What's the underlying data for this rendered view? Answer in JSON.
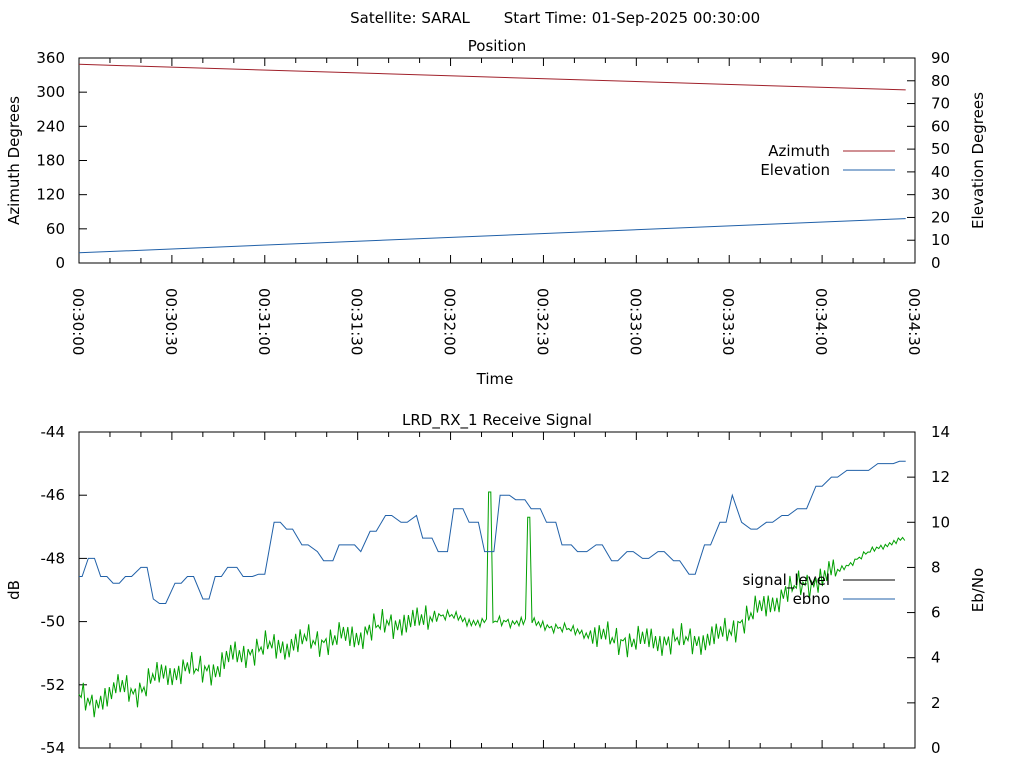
{
  "header": {
    "satellite": "Satellite: SARAL",
    "start_time": "Start Time: 01-Sep-2025 00:30:00"
  },
  "chart_data": [
    {
      "type": "line",
      "title": "Position",
      "xlabel": "Time",
      "ylabel": "Azimuth Degrees",
      "y2label": "Elevation Degrees",
      "ylim": [
        0,
        360
      ],
      "y2lim": [
        0,
        90
      ],
      "yticks": [
        "0",
        "60",
        "120",
        "180",
        "240",
        "300",
        "360"
      ],
      "y2ticks": [
        "0",
        "10",
        "20",
        "30",
        "40",
        "50",
        "60",
        "70",
        "80",
        "90"
      ],
      "xticks": [
        "00:30:00",
        "00:30:30",
        "00:31:00",
        "00:31:30",
        "00:32:00",
        "00:32:30",
        "00:33:00",
        "00:33:30",
        "00:34:00",
        "00:34:30"
      ],
      "grid": false,
      "legend": "right",
      "colors": {
        "azimuth": "#a0202a",
        "elevation": "#2060a8"
      },
      "series": [
        {
          "name": "Azimuth",
          "axis": "left",
          "x": [
            "00:30:00",
            "00:34:27"
          ],
          "values": [
            349,
            304
          ]
        },
        {
          "name": "Elevation",
          "axis": "right",
          "x": [
            "00:30:00",
            "00:34:27"
          ],
          "values": [
            4.5,
            19.5
          ]
        }
      ]
    },
    {
      "type": "line",
      "title": "LRD_RX_1 Receive Signal",
      "ylabel": "dB",
      "y2label": "Eb/No",
      "ylim": [
        -54,
        -44
      ],
      "y2lim": [
        0,
        14
      ],
      "yticks": [
        "-54",
        "-52",
        "-50",
        "-48",
        "-46",
        "-44"
      ],
      "y2ticks": [
        "0",
        "2",
        "4",
        "6",
        "8",
        "10",
        "12",
        "14"
      ],
      "grid": false,
      "legend": "right",
      "colors": {
        "signal_level": "#000000",
        "ebno": "#2060a8",
        "green_trace": "#00a000"
      },
      "series": [
        {
          "name": "signal_level",
          "axis": "left",
          "values": []
        },
        {
          "name": "ebno",
          "axis": "right",
          "x": [
            "00:30:00",
            "00:30:01",
            "00:30:03",
            "00:30:05",
            "00:30:07",
            "00:30:09",
            "00:30:11",
            "00:30:13",
            "00:30:15",
            "00:30:17",
            "00:30:20",
            "00:30:22",
            "00:30:24",
            "00:30:26",
            "00:30:28",
            "00:30:31",
            "00:30:33",
            "00:30:35",
            "00:30:37",
            "00:30:40",
            "00:30:42",
            "00:30:44",
            "00:30:46",
            "00:30:48",
            "00:30:51",
            "00:30:53",
            "00:30:56",
            "00:30:58",
            "00:31:00",
            "00:31:03",
            "00:31:05",
            "00:31:07",
            "00:31:09",
            "00:31:12",
            "00:31:14",
            "00:31:17",
            "00:31:19",
            "00:31:22",
            "00:31:24",
            "00:31:27",
            "00:31:29",
            "00:31:31",
            "00:31:34",
            "00:31:36",
            "00:31:39",
            "00:31:41",
            "00:31:44",
            "00:31:46",
            "00:31:49",
            "00:31:51",
            "00:31:54",
            "00:31:56",
            "00:31:59",
            "00:32:01",
            "00:32:04",
            "00:32:06",
            "00:32:09",
            "00:32:11",
            "00:32:14",
            "00:32:16",
            "00:32:19",
            "00:32:21",
            "00:32:24",
            "00:32:26",
            "00:32:29",
            "00:32:31",
            "00:32:34",
            "00:32:36",
            "00:32:39",
            "00:32:41",
            "00:32:44",
            "00:32:47",
            "00:32:49",
            "00:32:52",
            "00:32:54",
            "00:32:57",
            "00:32:59",
            "00:33:02",
            "00:33:04",
            "00:33:07",
            "00:33:09",
            "00:33:12",
            "00:33:14",
            "00:33:17",
            "00:33:19",
            "00:33:22",
            "00:33:24",
            "00:33:27",
            "00:33:29",
            "00:33:31",
            "00:33:34",
            "00:33:37",
            "00:33:39",
            "00:33:42",
            "00:33:44",
            "00:33:47",
            "00:33:49",
            "00:33:52",
            "00:33:55",
            "00:33:58",
            "00:34:00",
            "00:34:03",
            "00:34:05",
            "00:34:08",
            "00:34:10",
            "00:34:13",
            "00:34:15",
            "00:34:18",
            "00:34:20",
            "00:34:23",
            "00:34:25",
            "00:34:27"
          ],
          "values": [
            7.6,
            7.6,
            8.4,
            8.4,
            7.6,
            7.6,
            7.3,
            7.3,
            7.6,
            7.6,
            8.0,
            8.0,
            6.6,
            6.4,
            6.4,
            7.3,
            7.3,
            7.6,
            7.6,
            6.6,
            6.6,
            7.6,
            7.6,
            8.0,
            8.0,
            7.6,
            7.6,
            7.7,
            7.7,
            10.0,
            10.0,
            9.7,
            9.7,
            9.0,
            9.0,
            8.7,
            8.3,
            8.3,
            9.0,
            9.0,
            9.0,
            8.7,
            9.6,
            9.6,
            10.3,
            10.3,
            10.0,
            10.0,
            10.3,
            9.3,
            9.3,
            8.7,
            8.7,
            10.6,
            10.6,
            10.0,
            10.0,
            8.7,
            8.7,
            11.2,
            11.2,
            11.0,
            11.0,
            10.6,
            10.6,
            10.0,
            10.0,
            9.0,
            9.0,
            8.7,
            8.7,
            9.0,
            9.0,
            8.3,
            8.3,
            8.7,
            8.7,
            8.4,
            8.4,
            8.7,
            8.7,
            8.3,
            8.3,
            7.7,
            7.7,
            9.0,
            9.0,
            10.0,
            10.0,
            11.2,
            10.0,
            9.7,
            9.7,
            10.0,
            10.0,
            10.3,
            10.3,
            10.6,
            10.6,
            11.6,
            11.6,
            12.0,
            12.0,
            12.3,
            12.3,
            12.3,
            12.3,
            12.6,
            12.6,
            12.6,
            12.7,
            12.7
          ]
        }
      ],
      "green_trace": {
        "anchors_x": [
          "00:30:00",
          "00:30:03",
          "00:30:08",
          "00:30:11",
          "00:30:14",
          "00:30:18",
          "00:30:21",
          "00:30:24",
          "00:30:28",
          "00:30:31",
          "00:30:35",
          "00:30:40",
          "00:30:45",
          "00:30:49",
          "00:30:53",
          "00:30:57",
          "00:31:01",
          "00:31:05",
          "00:31:09",
          "00:31:14",
          "00:31:19",
          "00:31:24",
          "00:31:29",
          "00:31:35",
          "00:31:40",
          "00:31:45",
          "00:31:50",
          "00:31:55",
          "00:32:00",
          "00:32:05",
          "00:32:10",
          "00:32:15",
          "00:32:20",
          "00:32:25",
          "00:32:30",
          "00:32:35",
          "00:32:40",
          "00:32:45",
          "00:32:50",
          "00:32:55",
          "00:33:00",
          "00:33:05",
          "00:33:10",
          "00:33:15",
          "00:33:20",
          "00:33:25",
          "00:33:30",
          "00:33:35",
          "00:33:40",
          "00:33:45",
          "00:33:50",
          "00:33:55",
          "00:34:00",
          "00:34:05",
          "00:34:10",
          "00:34:15",
          "00:34:20",
          "00:34:25",
          "00:34:27"
        ],
        "anchors_db": [
          -52.3,
          -52.6,
          -52.4,
          -52.3,
          -52.0,
          -52.2,
          -52.1,
          -51.8,
          -51.6,
          -51.6,
          -51.5,
          -51.5,
          -51.5,
          -51.1,
          -51.0,
          -50.9,
          -50.8,
          -50.8,
          -50.7,
          -50.6,
          -50.6,
          -50.5,
          -50.5,
          -50.2,
          -50.1,
          -50.0,
          -50.0,
          -49.8,
          -49.8,
          -50.0,
          -50.0,
          -50.0,
          -50.0,
          -50.0,
          -50.1,
          -50.2,
          -50.3,
          -50.4,
          -50.5,
          -50.6,
          -50.6,
          -50.6,
          -50.6,
          -50.6,
          -50.6,
          -50.5,
          -50.3,
          -49.9,
          -49.6,
          -49.3,
          -49.0,
          -48.8,
          -48.6,
          -48.4,
          -48.1,
          -47.8,
          -47.6,
          -47.4,
          -47.4
        ],
        "spikes": [
          {
            "x": "00:32:13",
            "db": -45.9
          },
          {
            "x": "00:32:25",
            "db": -46.7
          }
        ]
      }
    }
  ],
  "legend": {
    "azimuth": "Azimuth",
    "elevation": "Elevation",
    "signal_level": "signal_level",
    "ebno": "ebno"
  }
}
